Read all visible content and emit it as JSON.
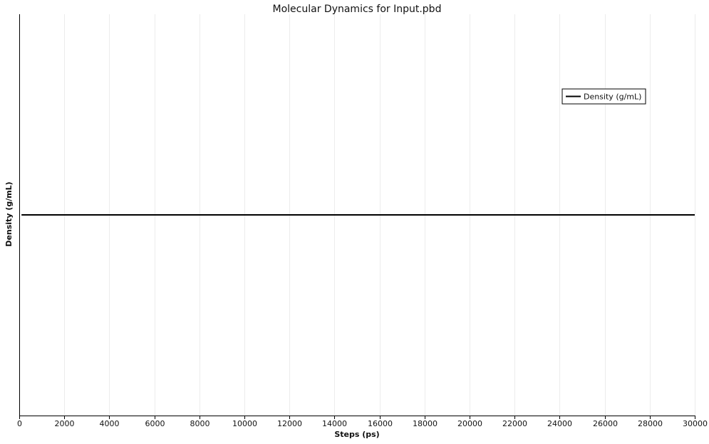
{
  "chart_data": {
    "type": "line",
    "title": "Molecular Dynamics for Input.pbd",
    "xlabel": "Steps (ps)",
    "ylabel": "Density (g/mL)",
    "xlim": [
      0,
      30000
    ],
    "xticks": [
      0,
      2000,
      4000,
      6000,
      8000,
      10000,
      12000,
      14000,
      16000,
      18000,
      20000,
      22000,
      24000,
      26000,
      28000,
      30000
    ],
    "ylim": [
      0,
      1
    ],
    "grid": "vertical",
    "legend": "top-right",
    "series": [
      {
        "name": "Density (g/mL)",
        "color": "#000000",
        "x": [
          100,
          30000
        ],
        "y": [
          0.5,
          0.5
        ]
      }
    ]
  }
}
